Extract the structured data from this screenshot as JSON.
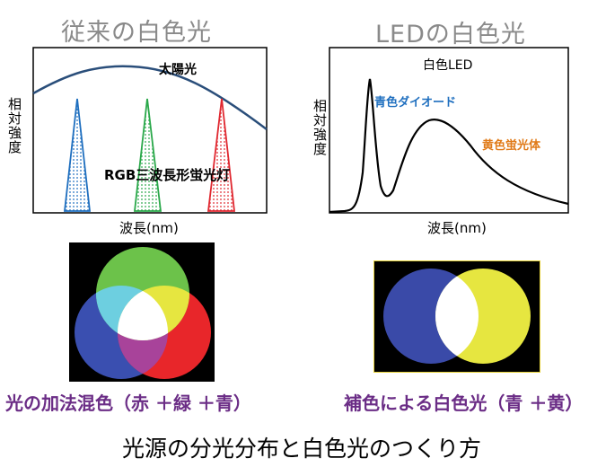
{
  "left": {
    "heading": "従来の白色光",
    "ylabel": "相対強度",
    "xlabel": "波長(nm)",
    "sun_label": "太陽光",
    "lamp_label": "RGB三波長形蛍光灯",
    "caption": "光の加法混色（赤 ＋緑 ＋青）"
  },
  "right": {
    "heading": "LEDの白色光",
    "ylabel": "相対強度",
    "xlabel": "波長(nm)",
    "led_label": "白色LED",
    "blue_label": "青色ダイオード",
    "yellow_label": "黄色蛍光体",
    "caption": "補色による白色光（青 ＋黄）"
  },
  "footer": "光源の分光分布と白色光のつくり方",
  "colors": {
    "heading": "#8a8a8a",
    "caption": "#6b2d86",
    "sun_curve": "#2a4e7a",
    "blue_peak": "#1f6fbf",
    "green_peak": "#2aa84a",
    "red_peak": "#e02830",
    "blue_label": "#1f6fbf",
    "yellow_label": "#e07a18",
    "mix_red": "#e8262a",
    "mix_green": "#6cc24a",
    "mix_blue": "#3a4fb0",
    "comp_yellow": "#e6e640",
    "comp_blue": "#3a4aa8"
  }
}
